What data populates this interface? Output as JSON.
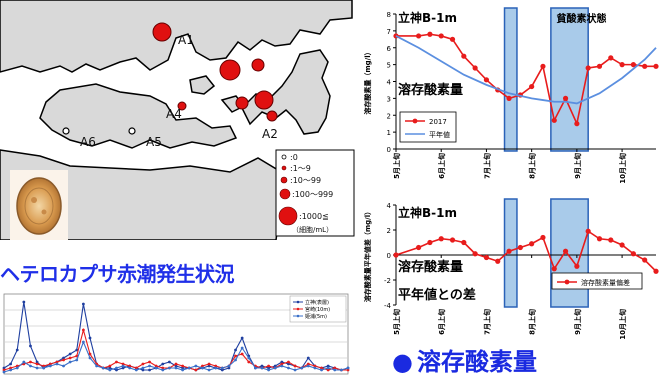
{
  "map": {
    "stations": [
      "A1",
      "A2",
      "A4",
      "A5",
      "A6"
    ],
    "legend": {
      "items": [
        ":0",
        ":1～9",
        ":10～99",
        ":100～999",
        ":1000≦"
      ],
      "unit": "（細胞/mL）"
    }
  },
  "captions": {
    "left": "ヘテロカプサ赤潮発生状況",
    "right": "溶存酸素量",
    "right_bullet": "●"
  },
  "chart_data": [
    {
      "type": "line",
      "title": "立神B-1m",
      "annotation_main": "溶存酸素量",
      "annotation_shade": "貧酸素状態",
      "ylabel": "溶存酸素量（mg/l）",
      "ylim": [
        0,
        8
      ],
      "yticks": [
        "0",
        "1",
        "2",
        "3",
        "4",
        "5",
        "6",
        "7",
        "8"
      ],
      "xlabels": [
        "5月上旬",
        "6月上旬",
        "7月上旬",
        "8月上旬",
        "9月上旬",
        "10月上旬"
      ],
      "x_range": [
        0,
        11.5
      ],
      "shaded_regions": [
        [
          4.8,
          5.35
        ],
        [
          6.85,
          8.5
        ]
      ],
      "series": [
        {
          "name": "2017",
          "color": "#e81c1c",
          "x": [
            0,
            1,
            1.5,
            2,
            2.5,
            3,
            3.5,
            4,
            4.5,
            5,
            5.5,
            6,
            6.5,
            7,
            7.5,
            8,
            8.5,
            9,
            9.5,
            10,
            10.5,
            11,
            11.5
          ],
          "values": [
            6.7,
            6.7,
            6.8,
            6.7,
            6.5,
            5.5,
            4.8,
            4.1,
            3.5,
            3.0,
            3.2,
            3.7,
            4.9,
            1.7,
            3.0,
            1.5,
            4.8,
            4.9,
            5.4,
            5.0,
            5.0,
            4.9,
            4.9
          ]
        },
        {
          "name": "平年値",
          "color": "#5b8fe0",
          "x": [
            0,
            1,
            2,
            3,
            4,
            5,
            6,
            6.5,
            7,
            7.5,
            8,
            9,
            10,
            11,
            11.5
          ],
          "values": [
            6.7,
            6.0,
            5.2,
            4.4,
            3.8,
            3.3,
            3.0,
            2.9,
            2.8,
            2.8,
            2.7,
            3.3,
            4.2,
            5.3,
            6.0
          ]
        }
      ]
    },
    {
      "type": "line",
      "title": "立神B-1m",
      "annotation_main": "溶存酸素量",
      "annotation_sub": "平年値との差",
      "ylabel": "溶存酸素量平年値差（mg/l）",
      "ylim": [
        -4,
        4
      ],
      "yticks": [
        "-4",
        "-2",
        "0",
        "2",
        "4"
      ],
      "xlabels": [
        "5月上旬",
        "6月上旬",
        "7月上旬",
        "8月上旬",
        "9月上旬",
        "10月上旬"
      ],
      "x_range": [
        0,
        11.5
      ],
      "shaded_regions": [
        [
          4.8,
          5.35
        ],
        [
          6.85,
          8.5
        ]
      ],
      "series": [
        {
          "name": "溶存酸素量偏差",
          "color": "#e81c1c",
          "x": [
            0,
            1,
            1.5,
            2,
            2.5,
            3,
            3.5,
            4,
            4.5,
            5,
            5.5,
            6,
            6.5,
            7,
            7.5,
            8,
            8.5,
            9,
            9.5,
            10,
            10.5,
            11,
            11.5
          ],
          "values": [
            0.0,
            0.6,
            1.0,
            1.3,
            1.2,
            1.0,
            0.1,
            -0.2,
            -0.5,
            0.3,
            0.6,
            0.9,
            1.4,
            -1.1,
            0.3,
            -0.9,
            1.9,
            1.3,
            1.2,
            0.8,
            0.1,
            -0.4,
            -1.3
          ]
        }
      ]
    },
    {
      "type": "line",
      "ylim": [
        0,
        4
      ],
      "x_range": [
        0,
        52
      ],
      "series": [
        {
          "name": "立神(表層)",
          "color": "#1f3fa0",
          "values": [
            0.3,
            0.5,
            1.2,
            3.6,
            1.4,
            0.6,
            0.3,
            0.5,
            0.6,
            0.8,
            1.0,
            1.2,
            3.5,
            1.8,
            0.5,
            0.3,
            0.3,
            0.2,
            0.3,
            0.4,
            0.3,
            0.2,
            0.2,
            0.3,
            0.5,
            0.6,
            0.4,
            0.3,
            0.3,
            0.2,
            0.3,
            0.4,
            0.3,
            0.2,
            0.3,
            1.2,
            1.8,
            0.9,
            0.3,
            0.4,
            0.3,
            0.4,
            0.6,
            0.5,
            0.4,
            0.3,
            0.8,
            0.4,
            0.3,
            0.4,
            0.3,
            0.2,
            0.3
          ]
        },
        {
          "name": "宮崎(10m)",
          "color": "#e81c1c",
          "values": [
            0.2,
            0.3,
            0.4,
            0.5,
            0.6,
            0.5,
            0.4,
            0.5,
            0.6,
            0.7,
            0.8,
            0.9,
            2.2,
            1.0,
            0.5,
            0.3,
            0.4,
            0.6,
            0.5,
            0.4,
            0.3,
            0.5,
            0.6,
            0.4,
            0.3,
            0.3,
            0.5,
            0.4,
            0.3,
            0.2,
            0.4,
            0.5,
            0.4,
            0.3,
            0.4,
            0.9,
            1.0,
            0.6,
            0.4,
            0.3,
            0.4,
            0.3,
            0.5,
            0.6,
            0.4,
            0.3,
            0.5,
            0.4,
            0.3,
            0.2,
            0.3,
            0.2,
            0.2
          ]
        },
        {
          "name": "姫浦(5m)",
          "color": "#3a6fc8",
          "values": [
            0.1,
            0.2,
            0.3,
            0.6,
            0.4,
            0.3,
            0.3,
            0.4,
            0.5,
            0.4,
            0.6,
            0.7,
            1.6,
            0.8,
            0.4,
            0.3,
            0.2,
            0.3,
            0.4,
            0.3,
            0.2,
            0.3,
            0.4,
            0.3,
            0.2,
            0.3,
            0.3,
            0.2,
            0.3,
            0.4,
            0.3,
            0.2,
            0.3,
            0.3,
            0.4,
            0.7,
            1.3,
            0.8,
            0.3,
            0.3,
            0.2,
            0.3,
            0.4,
            0.3,
            0.2,
            0.3,
            0.4,
            0.3,
            0.2,
            0.3,
            0.2,
            0.2,
            0.3
          ]
        }
      ]
    }
  ]
}
